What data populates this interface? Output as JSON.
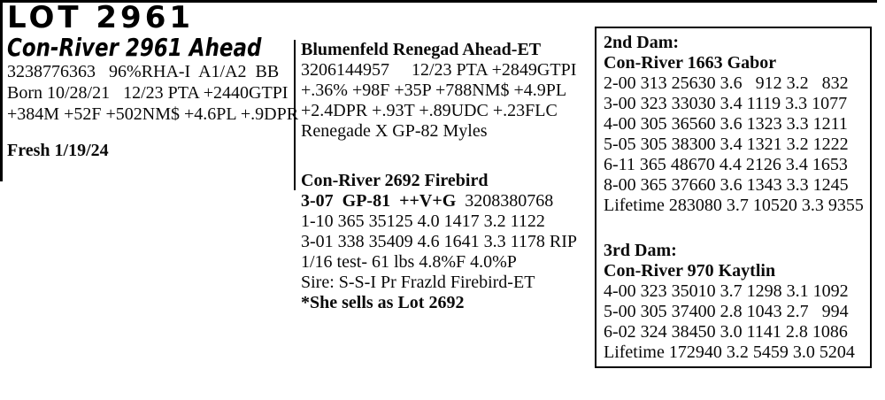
{
  "colors": {
    "ink": "#000000",
    "background": "#ffffff"
  },
  "header": {
    "lot_title": "LOT 2961",
    "animal_name": "Con-River 2961 Ahead",
    "id_line": "3238776363   96%RHA-I  A1/A2  BB",
    "born_line": "Born 10/28/21   12/23 PTA +2440GTPI",
    "pta_line": "+384M +52F +502NM$ +4.6PL +.9DPR",
    "fresh_line": "Fresh 1/19/24"
  },
  "sire": {
    "name": "Blumenfeld Renegad Ahead-ET",
    "lines": [
      "3206144957     12/23 PTA +2849GTPI",
      "+.36% +98F +35P +788NM$ +4.9PL",
      "+2.4DPR +.93T +.89UDC +.23FLC",
      "Renegade X GP-82 Myles"
    ]
  },
  "dam": {
    "name": "Con-River 2692 Firebird",
    "classification": "3-07  GP-81  ++V+G  ",
    "reg_number": "3208380768",
    "records": [
      "1-10 365 35125 4.0 1417 3.2 1122",
      "3-01 338 35409 4.6 1641 3.3 1178 RIP",
      "1/16 test- 61 lbs 4.8%F 4.0%P",
      "Sire: S-S-I Pr Frazld Firebird-ET"
    ],
    "sale_note": "*She sells as Lot 2692"
  },
  "dam_box": {
    "second_dam": {
      "label": "2nd Dam:",
      "name": "Con-River 1663 Gabor",
      "records": [
        "2-00 313 25630 3.6   912 3.2   832",
        "3-00 323 33030 3.4 1119 3.3 1077",
        "4-00 305 36560 3.6 1323 3.3 1211",
        "5-05 305 38300 3.4 1321 3.2 1222",
        "6-11 365 48670 4.4 2126 3.4 1653",
        "8-00 365 37660 3.6 1343 3.3 1245",
        "Lifetime 283080 3.7 10520 3.3 9355"
      ]
    },
    "third_dam": {
      "label": "3rd Dam:",
      "name": "Con-River 970 Kaytlin",
      "records": [
        "4-00 323 35010 3.7 1298 3.1 1092",
        "5-00 305 37400 2.8 1043 2.7   994",
        "6-02 324 38450 3.0 1141 2.8 1086",
        "Lifetime 172940 3.2 5459 3.0 5204"
      ]
    }
  }
}
